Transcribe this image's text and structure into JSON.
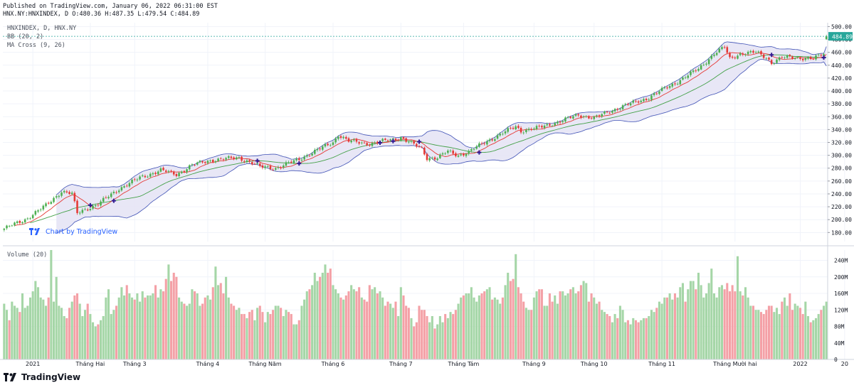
{
  "header": {
    "published": "Published on TradingView.com, January 06, 2022 06:31:00 EST",
    "ohlc": "HNX.NY:HNXINDEX, D O:480.36 H:487.35 L:479.54 C:484.89"
  },
  "indicators": {
    "symbol": "HNXINDEX, D, HNX.NY",
    "bb": "BB (20, 2)",
    "ma": "MA Cross (9, 26)",
    "volume": "Volume (20)"
  },
  "watermark": "Chart by TradingView",
  "brand": "TradingView",
  "colors": {
    "up": "#26a69a",
    "down": "#ef5350",
    "upCandle": "#4caf50",
    "downCandle": "#e53935",
    "volUp": "#a5d6a7",
    "volDown": "#f4a0a6",
    "bbFill": "#e6e4f5",
    "bbBand": "#3f51b5",
    "maFast": "#e53935",
    "maSlow": "#43a047",
    "cross": "#311b92",
    "lastPrice": "#26a69a"
  },
  "chart_data": {
    "type": "candlestick",
    "title": "HNXINDEX, D, HNX.NY",
    "last_price": 484.89,
    "price_axis": {
      "ticks": [
        500,
        480,
        460,
        440,
        420,
        400,
        380,
        360,
        340,
        320,
        300,
        280,
        260,
        240,
        220,
        200,
        180
      ],
      "range": [
        166,
        506
      ]
    },
    "volume_axis": {
      "ticks": [
        "240M",
        "200M",
        "160M",
        "120M",
        "80M",
        "40M",
        "0"
      ],
      "values": [
        240,
        200,
        160,
        120,
        80,
        40,
        0
      ],
      "range": [
        0,
        265
      ],
      "unit": "M"
    },
    "time_axis": {
      "labels": [
        "2021",
        "Tháng Hai",
        "Tháng 3",
        "Tháng 4",
        "Tháng Năm",
        "Tháng 6",
        "Tháng 7",
        "Tháng Tám",
        "Tháng 9",
        "Tháng 10",
        "Tháng 11",
        "Tháng Mười hai",
        "2022",
        "20"
      ],
      "label_day": [
        11,
        33,
        50,
        78,
        100,
        126,
        152,
        176,
        203,
        226,
        252,
        280,
        305,
        322
      ]
    },
    "price_path": [
      [
        0,
        186
      ],
      [
        8,
        200
      ],
      [
        16,
        222
      ],
      [
        22,
        244
      ],
      [
        26,
        240
      ],
      [
        28,
        210
      ],
      [
        31,
        216
      ],
      [
        36,
        224
      ],
      [
        44,
        248
      ],
      [
        52,
        265
      ],
      [
        60,
        277
      ],
      [
        66,
        270
      ],
      [
        72,
        285
      ],
      [
        80,
        293
      ],
      [
        90,
        296
      ],
      [
        94,
        290
      ],
      [
        98,
        282
      ],
      [
        104,
        280
      ],
      [
        112,
        292
      ],
      [
        120,
        308
      ],
      [
        126,
        320
      ],
      [
        128,
        332
      ],
      [
        132,
        322
      ],
      [
        140,
        318
      ],
      [
        148,
        324
      ],
      [
        152,
        328
      ],
      [
        154,
        323
      ],
      [
        160,
        310
      ],
      [
        162,
        296
      ],
      [
        166,
        296
      ],
      [
        170,
        306
      ],
      [
        174,
        300
      ],
      [
        178,
        305
      ],
      [
        184,
        320
      ],
      [
        190,
        332
      ],
      [
        196,
        345
      ],
      [
        198,
        338
      ],
      [
        204,
        342
      ],
      [
        214,
        354
      ],
      [
        220,
        363
      ],
      [
        226,
        358
      ],
      [
        236,
        375
      ],
      [
        246,
        388
      ],
      [
        256,
        410
      ],
      [
        266,
        434
      ],
      [
        272,
        458
      ],
      [
        276,
        468
      ],
      [
        278,
        450
      ],
      [
        282,
        458
      ],
      [
        288,
        460
      ],
      [
        292,
        452
      ],
      [
        294,
        444
      ],
      [
        298,
        452
      ],
      [
        304,
        452
      ],
      [
        310,
        450
      ],
      [
        314,
        458
      ],
      [
        318,
        475
      ],
      [
        321,
        487
      ]
    ],
    "volume_series": [
      135,
      120,
      95,
      140,
      130,
      125,
      115,
      160,
      125,
      130,
      150,
      165,
      190,
      175,
      150,
      145,
      130,
      150,
      265,
      140,
      200,
      130,
      125,
      105,
      100,
      125,
      140,
      155,
      160,
      135,
      105,
      120,
      135,
      110,
      90,
      80,
      85,
      95,
      105,
      150,
      170,
      110,
      120,
      130,
      150,
      175,
      155,
      180,
      160,
      150,
      145,
      160,
      140,
      165,
      150,
      155,
      155,
      160,
      180,
      150,
      170,
      165,
      195,
      230,
      190,
      210,
      200,
      150,
      140,
      135,
      130,
      135,
      170,
      165,
      160,
      130,
      135,
      150,
      155,
      145,
      175,
      225,
      180,
      185,
      160,
      200,
      150,
      135,
      130,
      120,
      125,
      110,
      110,
      100,
      115,
      120,
      95,
      125,
      130,
      115,
      90,
      115,
      110,
      120,
      130,
      130,
      125,
      105,
      120,
      115,
      110,
      85,
      85,
      95,
      130,
      145,
      165,
      170,
      180,
      210,
      190,
      200,
      210,
      230,
      210,
      220,
      180,
      170,
      160,
      150,
      145,
      155,
      165,
      180,
      170,
      165,
      175,
      150,
      145,
      140,
      180,
      170,
      175,
      160,
      165,
      150,
      130,
      140,
      135,
      125,
      140,
      105,
      175,
      155,
      130,
      125,
      100,
      80,
      90,
      130,
      120,
      120,
      105,
      90,
      105,
      75,
      85,
      105,
      90,
      110,
      100,
      115,
      110,
      120,
      135,
      150,
      155,
      160,
      160,
      175,
      150,
      140,
      155,
      160,
      165,
      170,
      175,
      145,
      150,
      145,
      135,
      150,
      180,
      210,
      190,
      195,
      255,
      175,
      160,
      140,
      125,
      120,
      120,
      150,
      165,
      170,
      170,
      130,
      130,
      160,
      140,
      155,
      135,
      165,
      165,
      155,
      160,
      170,
      175,
      160,
      165,
      180,
      190,
      185,
      140,
      160,
      150,
      135,
      140,
      120,
      115,
      110,
      105,
      90,
      110,
      100,
      130,
      120,
      90,
      95,
      85,
      100,
      95,
      90,
      95,
      100,
      100,
      105,
      120,
      115,
      125,
      140,
      135,
      150,
      150,
      160,
      145,
      160,
      150,
      175,
      185,
      140,
      170,
      190,
      190,
      170,
      210,
      180,
      150,
      160,
      185,
      220,
      160,
      150,
      175,
      180,
      170,
      185,
      165,
      180,
      165,
      250,
      165,
      155,
      175,
      150,
      130,
      130,
      120,
      120,
      115,
      110,
      120,
      130,
      130,
      115,
      125,
      110,
      140,
      150,
      130,
      160,
      120,
      135,
      130,
      125,
      110,
      140,
      105,
      90,
      95,
      100,
      110,
      120,
      130,
      140
    ]
  }
}
